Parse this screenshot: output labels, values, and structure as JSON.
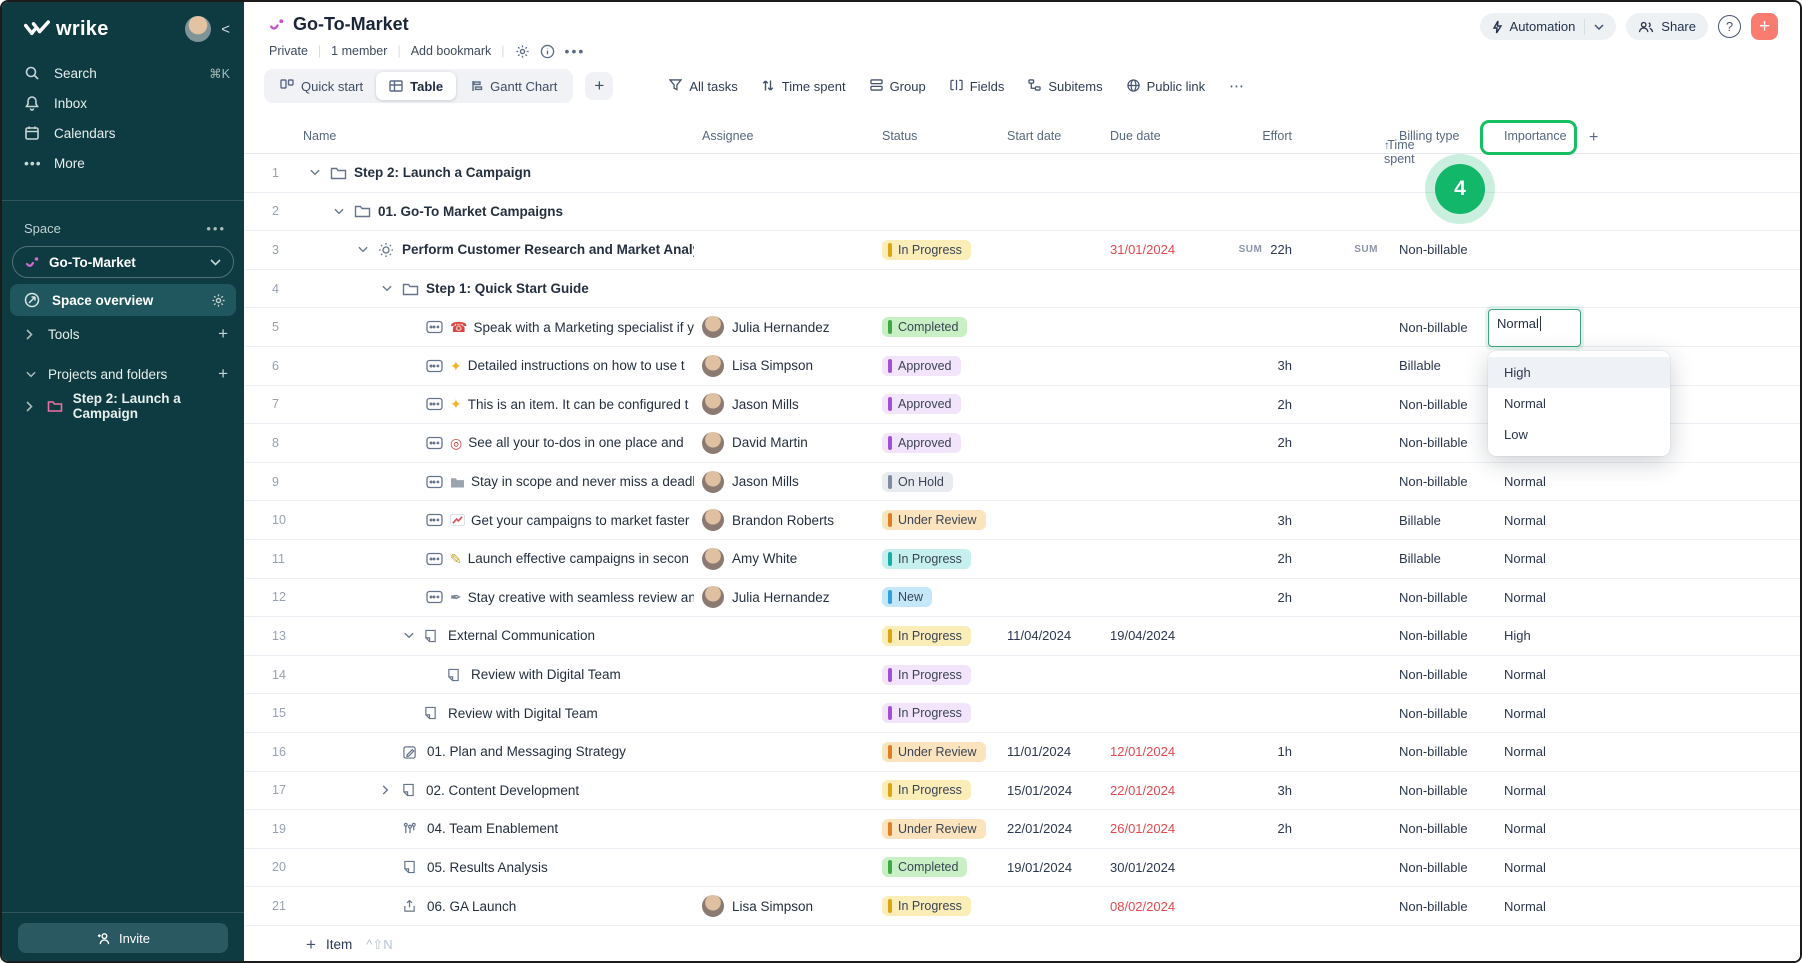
{
  "colors": {
    "sidebar_bg": "#0E3B41",
    "accent_green": "#17BF63",
    "add_button_salmon": "#F87C70",
    "brand_pink": "#C750C9",
    "overdue_red": "#E5484D",
    "selected_nav_bg": "#20565D"
  },
  "sidebar": {
    "logo": "wrike",
    "collapse_icon": "<",
    "nav": [
      {
        "label": "Search",
        "icon": "search",
        "shortcut": "⌘K"
      },
      {
        "label": "Inbox",
        "icon": "bell"
      },
      {
        "label": "Calendars",
        "icon": "calendar"
      },
      {
        "label": "More",
        "icon": "dots"
      }
    ],
    "space_section_label": "Space",
    "space_name": "Go-To-Market",
    "space_overview_label": "Space overview",
    "tools_label": "Tools",
    "projects_label": "Projects and folders",
    "project_item": "Step 2: Launch a Campaign",
    "invite_label": "Invite"
  },
  "header": {
    "title": "Go-To-Market",
    "meta": [
      "Private",
      "1 member",
      "Add bookmark"
    ],
    "automation_label": "Automation",
    "share_label": "Share",
    "help_label": "?",
    "add_label": "+"
  },
  "toolbar": {
    "views": [
      {
        "label": "Quick start",
        "icon": "board"
      },
      {
        "label": "Table",
        "icon": "table",
        "active": true
      },
      {
        "label": "Gantt Chart",
        "icon": "gantt"
      }
    ],
    "add_view_label": "+",
    "actions": [
      {
        "label": "All tasks",
        "icon": "filter"
      },
      {
        "label": "Time spent",
        "icon": "sort"
      },
      {
        "label": "Group",
        "icon": "group"
      },
      {
        "label": "Fields",
        "icon": "fields"
      },
      {
        "label": "Subitems",
        "icon": "subitems"
      },
      {
        "label": "Public link",
        "icon": "globe"
      }
    ],
    "more_label": "⋯"
  },
  "table": {
    "columns": [
      {
        "label": "Name"
      },
      {
        "label": "Assignee"
      },
      {
        "label": "Status"
      },
      {
        "label": "Start date"
      },
      {
        "label": "Due date"
      },
      {
        "label": "Effort"
      },
      {
        "label": "Time spent",
        "sort": "asc"
      },
      {
        "label": "Billing type"
      },
      {
        "label": "Importance"
      },
      {
        "label": "+"
      }
    ],
    "statuses": {
      "in_progress_yellow": {
        "label": "In Progress",
        "bg": "#FAEDB8",
        "bar": "#D9A514"
      },
      "in_progress_teal": {
        "label": "In Progress",
        "bg": "#C6F0ED",
        "bar": "#14AFA6"
      },
      "in_progress_purple": {
        "label": "In Progress",
        "bg": "#F2E4FB",
        "bar": "#A34FD4"
      },
      "completed": {
        "label": "Completed",
        "bg": "#C8F0C4",
        "bar": "#3FA845"
      },
      "approved": {
        "label": "Approved",
        "bg": "#F2E4FB",
        "bar": "#A34FD4"
      },
      "on_hold": {
        "label": "On Hold",
        "bg": "#E8EBF0",
        "bar": "#7E8CA3"
      },
      "under_review": {
        "label": "Under Review",
        "bg": "#FBE3BE",
        "bar": "#E08023"
      },
      "new": {
        "label": "New",
        "bg": "#C4E8FA",
        "bar": "#2F9FE0"
      }
    },
    "rows": [
      {
        "num": "1",
        "indent": 8,
        "chevron": "down",
        "icon": "folder",
        "name": "Step 2: Launch a Campaign",
        "bold": true
      },
      {
        "num": "2",
        "indent": 32,
        "chevron": "down",
        "icon": "folder",
        "name": "01. Go-To Market Campaigns",
        "bold": true
      },
      {
        "num": "3",
        "indent": 56,
        "chevron": "down",
        "icon": "sun",
        "name": "Perform Customer Research and Market Analy",
        "bold": true,
        "status": "in_progress_yellow",
        "due": "31/01/2024",
        "due_overdue": true,
        "effort": "22h",
        "effort_sum": true,
        "time_sum": true,
        "billing": "Non-billable"
      },
      {
        "num": "4",
        "indent": 80,
        "chevron": "down",
        "icon": "folder",
        "name": "Step 1: Quick Start Guide",
        "bold": true
      },
      {
        "num": "5",
        "indent": 104,
        "icon": "item",
        "emoji": "phone",
        "name": "Speak with a Marketing specialist if y",
        "assignee": "Julia Hernandez",
        "status": "completed",
        "billing": "Non-billable"
      },
      {
        "num": "6",
        "indent": 104,
        "icon": "item",
        "emoji": "sparkles",
        "name": "Detailed instructions on how to use t",
        "assignee": "Lisa Simpson",
        "status": "approved",
        "effort": "3h",
        "billing": "Billable"
      },
      {
        "num": "7",
        "indent": 104,
        "icon": "item",
        "emoji": "sparkles",
        "name": "This is an item. It can be configured t",
        "assignee": "Jason Mills",
        "status": "approved",
        "effort": "2h",
        "billing": "Non-billable"
      },
      {
        "num": "8",
        "indent": 104,
        "icon": "item",
        "emoji": "target",
        "name": "See all your to-dos in one place and",
        "assignee": "David Martin",
        "status": "approved",
        "effort": "2h",
        "billing": "Non-billable"
      },
      {
        "num": "9",
        "indent": 104,
        "icon": "item",
        "emoji": "folder_gray",
        "name": "Stay in scope and never miss a deadl",
        "assignee": "Jason Mills",
        "status": "on_hold",
        "billing": "Non-billable",
        "importance": "Normal"
      },
      {
        "num": "10",
        "indent": 104,
        "icon": "item",
        "emoji": "chart",
        "name": "Get your campaigns to market faster",
        "assignee": "Brandon Roberts",
        "status": "under_review",
        "effort": "3h",
        "billing": "Billable",
        "importance": "Normal"
      },
      {
        "num": "11",
        "indent": 104,
        "icon": "item",
        "emoji": "memo",
        "name": "Launch effective campaigns in secon",
        "assignee": "Amy White",
        "status": "in_progress_teal",
        "effort": "2h",
        "billing": "Billable",
        "importance": "Normal"
      },
      {
        "num": "12",
        "indent": 104,
        "icon": "item",
        "emoji": "pen",
        "name": "Stay creative with seamless review an",
        "assignee": "Julia Hernandez",
        "status": "new",
        "effort": "2h",
        "billing": "Non-billable",
        "importance": "Normal"
      },
      {
        "num": "13",
        "indent": 102,
        "chevron": "down",
        "icon": "doc",
        "name": "External Communication",
        "status": "in_progress_yellow",
        "start": "11/04/2024",
        "due": "19/04/2024",
        "billing": "Non-billable",
        "importance": "High"
      },
      {
        "num": "14",
        "indent": 125,
        "icon": "doc",
        "name": "Review with Digital Team",
        "status": "in_progress_purple",
        "billing": "Non-billable",
        "importance": "Normal"
      },
      {
        "num": "15",
        "indent": 102,
        "icon": "doc",
        "name": "Review with Digital Team",
        "status": "in_progress_purple",
        "billing": "Non-billable",
        "importance": "Normal"
      },
      {
        "num": "16",
        "indent": 81,
        "icon": "pencil",
        "name": "01. Plan and Messaging Strategy",
        "status": "under_review",
        "start": "11/01/2024",
        "due": "12/01/2024",
        "due_overdue": true,
        "effort": "1h",
        "billing": "Non-billable",
        "importance": "Normal"
      },
      {
        "num": "17",
        "indent": 80,
        "chevron": "right",
        "icon": "doc",
        "name": "02. Content Development",
        "status": "in_progress_yellow",
        "start": "15/01/2024",
        "due": "22/01/2024",
        "due_overdue": true,
        "effort": "3h",
        "billing": "Non-billable",
        "importance": "Normal"
      },
      {
        "num": "19",
        "indent": 81,
        "icon": "tree",
        "name": "04. Team Enablement",
        "status": "under_review",
        "start": "22/01/2024",
        "due": "26/01/2024",
        "due_overdue": true,
        "effort": "2h",
        "billing": "Non-billable",
        "importance": "Normal"
      },
      {
        "num": "20",
        "indent": 81,
        "icon": "doc",
        "name": "05. Results Analysis",
        "status": "completed",
        "start": "19/01/2024",
        "due": "30/01/2024",
        "billing": "Non-billable",
        "importance": "Normal"
      },
      {
        "num": "21",
        "indent": 81,
        "icon": "share",
        "name": "06. GA Launch",
        "assignee": "Lisa Simpson",
        "status": "in_progress_yellow",
        "due": "08/02/2024",
        "due_overdue": true,
        "billing": "Non-billable",
        "importance": "Normal"
      }
    ]
  },
  "overlay": {
    "annotation_step": "4",
    "edit_cell_value": "Normal",
    "dropdown": {
      "options": [
        "High",
        "Normal",
        "Low"
      ],
      "highlighted": "High"
    }
  },
  "footer": {
    "add_item_label": "Item",
    "shortcut": "^⇧N"
  }
}
